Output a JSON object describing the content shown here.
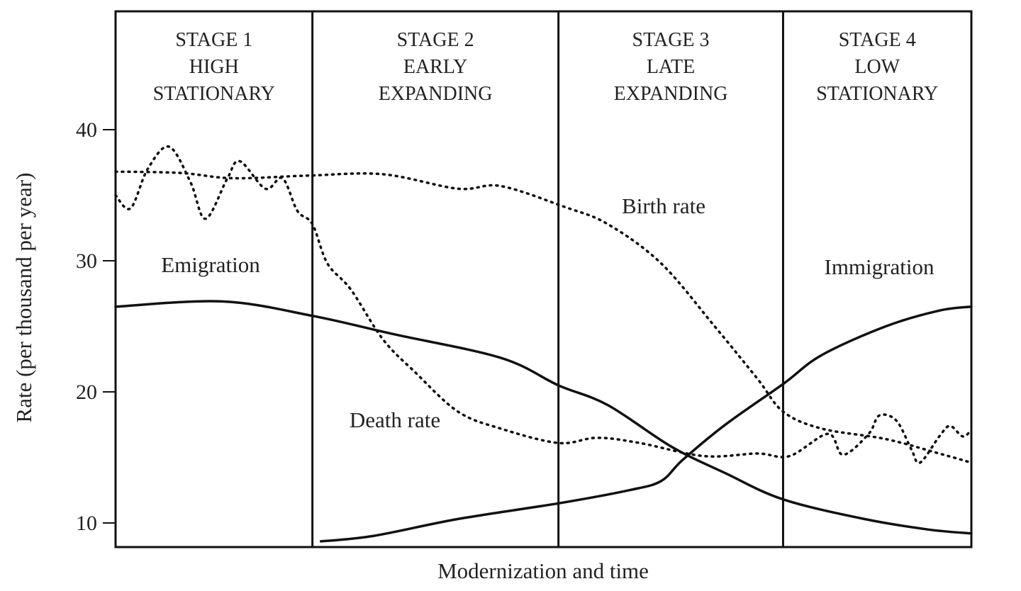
{
  "chart_data": {
    "type": "line",
    "x": {
      "label": "Modernization and time",
      "range": [
        0,
        4
      ]
    },
    "y": {
      "label": "Rate (per thousand per year)",
      "ticks": [
        10,
        20,
        30,
        40
      ],
      "range": [
        8,
        49
      ]
    },
    "stages": [
      {
        "lines": [
          "STAGE 1",
          "HIGH",
          "STATIONARY"
        ],
        "x_start": 0,
        "x_end": 0.92
      },
      {
        "lines": [
          "STAGE 2",
          "EARLY",
          "EXPANDING"
        ],
        "x_start": 0.92,
        "x_end": 2.07
      },
      {
        "lines": [
          "STAGE 3",
          "LATE",
          "EXPANDING"
        ],
        "x_start": 2.07,
        "x_end": 3.12
      },
      {
        "lines": [
          "STAGE 4",
          "LOW",
          "STATIONARY"
        ],
        "x_start": 3.12,
        "x_end": 4
      }
    ],
    "annotations": [
      {
        "text": "Emigration"
      },
      {
        "text": "Birth  rate"
      },
      {
        "text": "Immigration"
      },
      {
        "text": "Death  rate"
      }
    ],
    "series": [
      {
        "name": "Birth rate",
        "style": "dotted",
        "points": [
          [
            0,
            36.8
          ],
          [
            0.3,
            36.7
          ],
          [
            0.55,
            36.3
          ],
          [
            0.9,
            36.5
          ],
          [
            1.25,
            36.6
          ],
          [
            1.6,
            35.5
          ],
          [
            1.8,
            35.7
          ],
          [
            2.1,
            34.1
          ],
          [
            2.3,
            32.8
          ],
          [
            2.55,
            29.8
          ],
          [
            2.8,
            25.0
          ],
          [
            3.0,
            21.0
          ],
          [
            3.12,
            18.5
          ],
          [
            3.3,
            17.2
          ],
          [
            3.6,
            16.4
          ],
          [
            3.85,
            15.3
          ],
          [
            4,
            14.6
          ]
        ]
      },
      {
        "name": "Death rate",
        "style": "dotted",
        "points": [
          [
            0,
            35
          ],
          [
            0.07,
            34
          ],
          [
            0.15,
            37
          ],
          [
            0.25,
            38.7
          ],
          [
            0.35,
            36
          ],
          [
            0.42,
            33.2
          ],
          [
            0.52,
            36.2
          ],
          [
            0.58,
            37.6
          ],
          [
            0.7,
            35.5
          ],
          [
            0.78,
            36.3
          ],
          [
            0.85,
            33.8
          ],
          [
            0.92,
            32.8
          ],
          [
            0.99,
            29.8
          ],
          [
            1.1,
            27.8
          ],
          [
            1.25,
            24
          ],
          [
            1.4,
            21.5
          ],
          [
            1.6,
            18.5
          ],
          [
            1.8,
            17.2
          ],
          [
            2.07,
            16.1
          ],
          [
            2.25,
            16.5
          ],
          [
            2.45,
            16.1
          ],
          [
            2.75,
            15.1
          ],
          [
            3.0,
            15.3
          ],
          [
            3.15,
            15.1
          ],
          [
            3.33,
            16.8
          ],
          [
            3.4,
            15.2
          ],
          [
            3.52,
            16.8
          ],
          [
            3.57,
            18.2
          ],
          [
            3.65,
            17.8
          ],
          [
            3.72,
            15.6
          ],
          [
            3.76,
            14.6
          ],
          [
            3.85,
            16.6
          ],
          [
            3.9,
            17.4
          ],
          [
            3.96,
            16.6
          ],
          [
            4,
            17.1
          ]
        ]
      },
      {
        "name": "Emigration",
        "style": "solid",
        "points": [
          [
            0,
            26.5
          ],
          [
            0.5,
            26.9
          ],
          [
            0.92,
            25.8
          ],
          [
            1.3,
            24.4
          ],
          [
            1.8,
            22.6
          ],
          [
            2.07,
            20.5
          ],
          [
            2.3,
            19.0
          ],
          [
            2.6,
            15.8
          ],
          [
            2.85,
            13.8
          ],
          [
            3.12,
            11.8
          ],
          [
            3.5,
            10.3
          ],
          [
            3.8,
            9.5
          ],
          [
            4,
            9.2
          ]
        ]
      },
      {
        "name": "Immigration",
        "style": "solid",
        "points": [
          [
            0.96,
            8.6
          ],
          [
            1.2,
            9.0
          ],
          [
            1.6,
            10.3
          ],
          [
            2.07,
            11.5
          ],
          [
            2.4,
            12.5
          ],
          [
            2.55,
            13.2
          ],
          [
            2.65,
            14.8
          ],
          [
            2.85,
            17.5
          ],
          [
            3.12,
            20.6
          ],
          [
            3.3,
            22.8
          ],
          [
            3.6,
            25.0
          ],
          [
            3.85,
            26.2
          ],
          [
            4,
            26.5
          ]
        ]
      }
    ]
  }
}
